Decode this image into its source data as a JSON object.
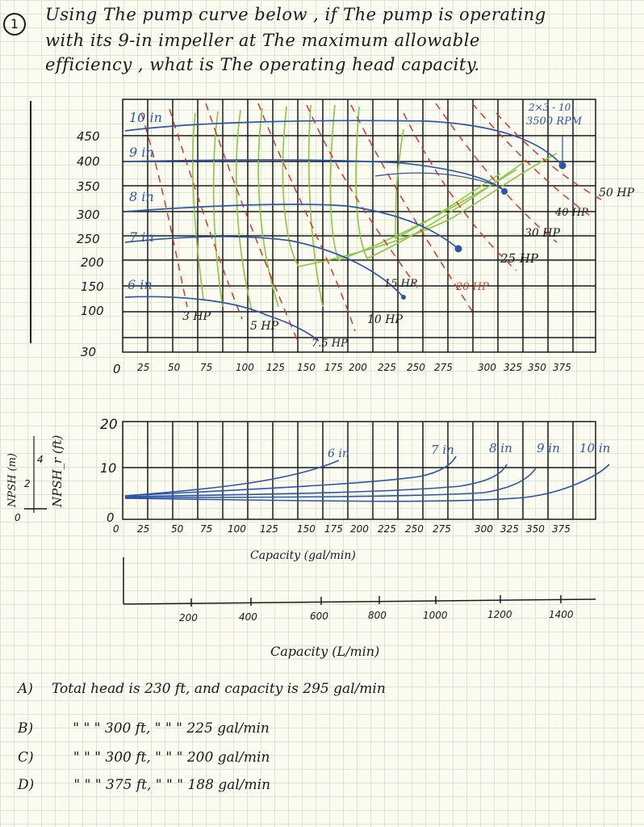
{
  "question": {
    "number": "1",
    "line1": "Using The pump curve below , if The pump is operating",
    "line2": "with its 9-in impeller at The maximum allowable",
    "line3": "efficiency , what is The operating head capacity."
  },
  "head_chart": {
    "model_label_1": "2×3 - 10",
    "model_label_2": "3500 RPM",
    "y_ticks": [
      "450",
      "400",
      "350",
      "300",
      "250",
      "200",
      "150",
      "100",
      "30"
    ],
    "x_ticks": [
      "0",
      "25",
      "50",
      "75",
      "100",
      "125",
      "150",
      "175",
      "200",
      "225",
      "250",
      "275",
      "300",
      "325",
      "350",
      "375"
    ],
    "impellers": [
      "10 in",
      "9 in",
      "8 in",
      "7 in",
      "6 in"
    ],
    "hp_labels": [
      "3 HP",
      "5 HP",
      "7.5 HP",
      "10 HP",
      "15 HP",
      "20 HP",
      "25 HP",
      "30 HP",
      "40 HP",
      "50 HP"
    ]
  },
  "npsh_chart": {
    "left_axis_label": "NPSH_r (ft)",
    "left_axis_label_m": "NPSH (m)",
    "y_ticks": [
      "20",
      "10",
      "0"
    ],
    "m_ticks": [
      "4",
      "2",
      "0"
    ],
    "impellers": [
      "6 in",
      "7 in",
      "8 in",
      "9 in",
      "10 in"
    ],
    "x_ticks": [
      "0",
      "25",
      "50",
      "75",
      "100",
      "125",
      "150",
      "175",
      "200",
      "225",
      "250",
      "275",
      "300",
      "325",
      "350",
      "375"
    ],
    "x_label": "Capacity (gal/min)"
  },
  "lmin_axis": {
    "ticks": [
      "200",
      "400",
      "600",
      "800",
      "1000",
      "1200",
      "1400"
    ],
    "label": "Capacity (L/min)"
  },
  "answers": [
    {
      "letter": "A)",
      "text": "Total head is 230 ft, and capacity is 295 gal/min"
    },
    {
      "letter": "B)",
      "text": "\"   \"   \"  300 ft,   \"   \"   \"  225 gal/min"
    },
    {
      "letter": "C)",
      "text": "\"   \"   \"  300 ft,   \"   \"   \"  200 gal/min"
    },
    {
      "letter": "D)",
      "text": "\"   \"   \"  375 ft,   \"   \"   \"  188 gal/min"
    }
  ],
  "colors": {
    "ink": "#1b1b1b",
    "blue": "#2f55a8",
    "red": "#d43a2c",
    "green": "#8cc63f"
  }
}
